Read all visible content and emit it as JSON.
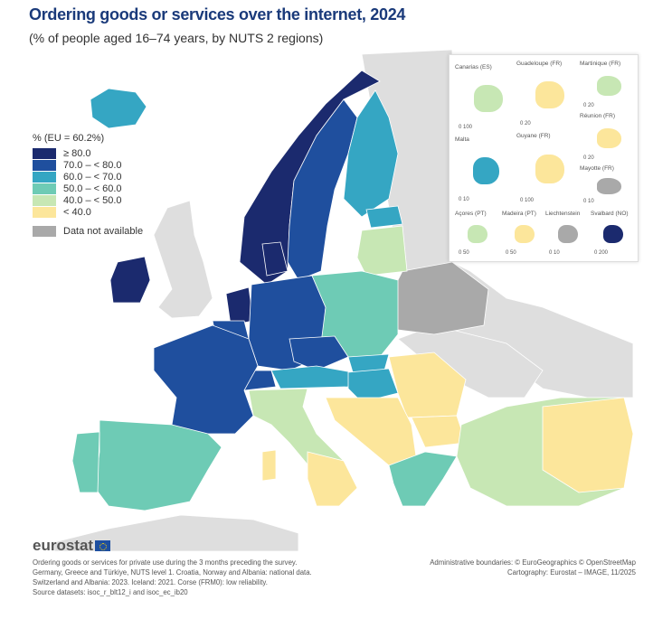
{
  "title": "Ordering goods or services over the internet, 2024",
  "subtitle": "(% of people aged 16–74 years, by NUTS 2 regions)",
  "legend": {
    "title": "% (EU = 60.2%)",
    "classes": [
      {
        "label": "≥ 80.0",
        "color": "#1b2a6e"
      },
      {
        "label": "70.0 – < 80.0",
        "color": "#1f4f9e"
      },
      {
        "label": "60.0 – < 70.0",
        "color": "#35a6c3"
      },
      {
        "label": "50.0 – < 60.0",
        "color": "#6ecbb5"
      },
      {
        "label": "40.0 – < 50.0",
        "color": "#c7e7b4"
      },
      {
        "label": "< 40.0",
        "color": "#fce69b"
      }
    ],
    "not_available": {
      "label": "Data not available",
      "color": "#a9a9a9"
    }
  },
  "colors": {
    "non_covered_land": "#dedede",
    "sea": "#ffffff",
    "title": "#1a3a7a"
  },
  "insets": [
    {
      "name": "Canarias (ES)",
      "scale": "0 100",
      "class": "40.0 – < 50.0"
    },
    {
      "name": "Guadeloupe (FR)",
      "scale": "0 20",
      "class": "< 40.0"
    },
    {
      "name": "Martinique (FR)",
      "scale": "0 20",
      "class": "40.0 – < 50.0"
    },
    {
      "name": "Réunion (FR)",
      "scale": "0 20",
      "class": "< 40.0"
    },
    {
      "name": "Malta",
      "scale": "0 10",
      "class": "60.0 – < 70.0"
    },
    {
      "name": "Guyane (FR)",
      "scale": "0 100",
      "class": "< 40.0"
    },
    {
      "name": "Mayotte (FR)",
      "scale": "0 10",
      "class": "Data not available"
    },
    {
      "name": "Açores (PT)",
      "scale": "0 50",
      "class": "40.0 – < 50.0"
    },
    {
      "name": "Madeira (PT)",
      "scale": "0 50",
      "class": "< 40.0"
    },
    {
      "name": "Liechtenstein",
      "scale": "0 10",
      "class": "Data not available"
    },
    {
      "name": "Svalbard (NO)",
      "scale": "0 200",
      "class": "≥ 80.0"
    }
  ],
  "footer": {
    "logo": "eurostat",
    "notes": "Ordering goods or services for private use during the 3 months preceding the survey. Germany, Greece and Türkiye, NUTS level 1. Croatia, Norway and Albania: national data. Switzerland and Albania: 2023. Iceland: 2021. Corse (FRM0): low reliability.",
    "source": "Source datasets: isoc_r_blt12_i and isoc_ec_ib20",
    "boundaries": "Administrative boundaries: © EuroGeographics © OpenStreetMap",
    "cartography": "Cartography: Eurostat – IMAGE, 11/2025"
  }
}
